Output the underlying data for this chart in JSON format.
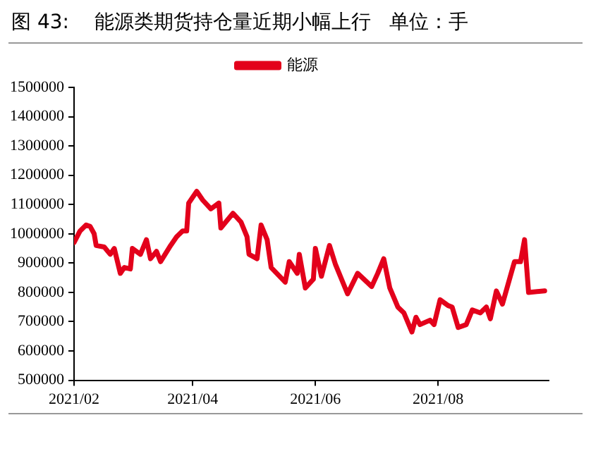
{
  "chart_data": {
    "type": "line",
    "title": "图 43:    能源类期货持仓量近期小幅上行   单位：手",
    "x": [
      "2021-02-01",
      "2021-02-04",
      "2021-02-07",
      "2021-02-09",
      "2021-02-11",
      "2021-02-12",
      "2021-02-16",
      "2021-02-19",
      "2021-02-21",
      "2021-02-24",
      "2021-02-26",
      "2021-03-01",
      "2021-03-02",
      "2021-03-06",
      "2021-03-09",
      "2021-03-11",
      "2021-03-14",
      "2021-03-16",
      "2021-03-21",
      "2021-03-24",
      "2021-03-27",
      "2021-03-29",
      "2021-03-30",
      "2021-04-03",
      "2021-04-06",
      "2021-04-10",
      "2021-04-14",
      "2021-04-15",
      "2021-04-21",
      "2021-04-25",
      "2021-04-28",
      "2021-04-29",
      "2021-05-03",
      "2021-05-05",
      "2021-05-08",
      "2021-05-10",
      "2021-05-17",
      "2021-05-19",
      "2021-05-23",
      "2021-05-24",
      "2021-05-27",
      "2021-05-31",
      "2021-06-01",
      "2021-06-04",
      "2021-06-08",
      "2021-06-11",
      "2021-06-17",
      "2021-06-22",
      "2021-06-29",
      "2021-07-02",
      "2021-07-05",
      "2021-07-08",
      "2021-07-12",
      "2021-07-15",
      "2021-07-19",
      "2021-07-21",
      "2021-07-23",
      "2021-07-28",
      "2021-07-30",
      "2021-08-02",
      "2021-08-06",
      "2021-08-08",
      "2021-08-11",
      "2021-08-15",
      "2021-08-18",
      "2021-08-22",
      "2021-08-25",
      "2021-08-27",
      "2021-08-30",
      "2021-09-02",
      "2021-09-08",
      "2021-09-11",
      "2021-09-13",
      "2021-09-15",
      "2021-09-23"
    ],
    "series": [
      {
        "name": "能源",
        "color": "#e3001b",
        "values": [
          970000,
          1010000,
          1030000,
          1025000,
          1000000,
          960000,
          955000,
          930000,
          950000,
          865000,
          885000,
          880000,
          950000,
          930000,
          980000,
          915000,
          940000,
          905000,
          960000,
          990000,
          1010000,
          1010000,
          1105000,
          1145000,
          1115000,
          1085000,
          1105000,
          1020000,
          1070000,
          1040000,
          990000,
          930000,
          915000,
          1030000,
          980000,
          885000,
          835000,
          905000,
          865000,
          930000,
          815000,
          845000,
          950000,
          855000,
          960000,
          895000,
          795000,
          865000,
          820000,
          865000,
          915000,
          815000,
          750000,
          730000,
          665000,
          715000,
          690000,
          705000,
          690000,
          775000,
          755000,
          750000,
          680000,
          690000,
          740000,
          730000,
          750000,
          710000,
          805000,
          760000,
          905000,
          905000,
          980000,
          800000,
          805000
        ]
      }
    ],
    "xlim": [
      "2021-02-01",
      "2021-09-25"
    ],
    "xticks": [
      {
        "value": "2021-02",
        "label": "2021/02"
      },
      {
        "value": "2021-04",
        "label": "2021/04"
      },
      {
        "value": "2021-06",
        "label": "2021/06"
      },
      {
        "value": "2021-08",
        "label": "2021/08"
      }
    ],
    "ylim": [
      500000,
      1500000
    ],
    "yticks": [
      500000,
      600000,
      700000,
      800000,
      900000,
      1000000,
      1100000,
      1200000,
      1300000,
      1400000,
      1500000
    ],
    "grid": false,
    "legend": "top",
    "marker": "none",
    "line_style": "solid"
  }
}
